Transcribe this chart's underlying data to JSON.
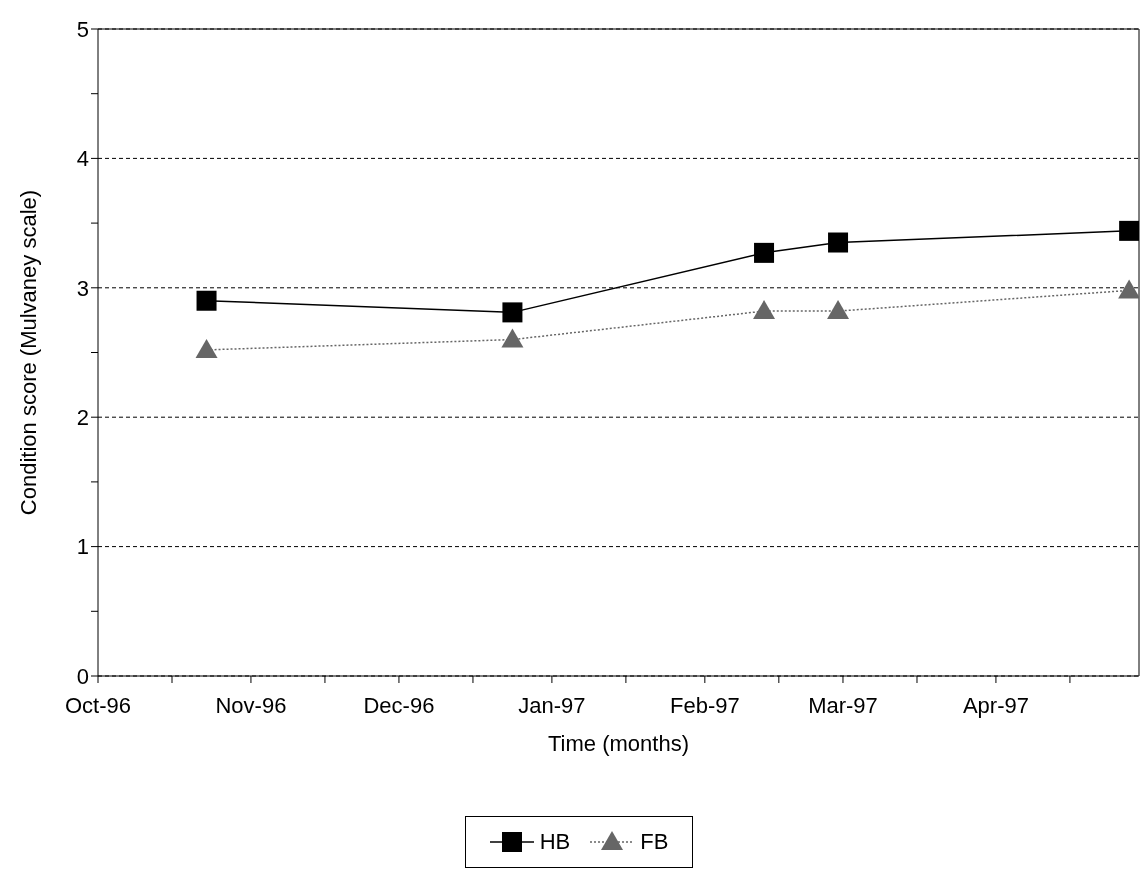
{
  "chart_data": {
    "type": "line",
    "xlabel": "Time (months)",
    "ylabel": "Condition score (Mulvaney scale)",
    "xlim": [
      "1996-10-01",
      "1997-04-30"
    ],
    "xticks": [
      {
        "value": "1996-10-01",
        "label": "Oct-96"
      },
      {
        "value": "1996-10-16",
        "label": null
      },
      {
        "value": "1996-11-01",
        "label": "Nov-96"
      },
      {
        "value": "1996-11-16",
        "label": null
      },
      {
        "value": "1996-12-01",
        "label": "Dec-96"
      },
      {
        "value": "1996-12-16",
        "label": null
      },
      {
        "value": "1997-01-01",
        "label": "Jan-97"
      },
      {
        "value": "1997-01-16",
        "label": null
      },
      {
        "value": "1997-02-01",
        "label": "Feb-97"
      },
      {
        "value": "1997-02-16",
        "label": null
      },
      {
        "value": "1997-03-01",
        "label": "Mar-97"
      },
      {
        "value": "1997-03-16",
        "label": null
      },
      {
        "value": "1997-04-01",
        "label": "Apr-97"
      },
      {
        "value": "1997-04-16",
        "label": null
      }
    ],
    "ylim": [
      0,
      5
    ],
    "yticks": [
      0,
      {
        "value": 0.5,
        "label": null
      },
      1,
      {
        "value": 1.5,
        "label": null
      },
      2,
      {
        "value": 2.5,
        "label": null
      },
      3,
      {
        "value": 3.5,
        "label": null
      },
      4,
      {
        "value": 4.5,
        "label": null
      },
      5
    ],
    "grid": "y",
    "legend": "bottom",
    "x": [
      "1996-10-23",
      "1996-12-24",
      "1997-02-13",
      "1997-02-28",
      "1997-04-28"
    ],
    "series": [
      {
        "name": "HB",
        "color": "#000000",
        "marker": "square",
        "line_style": "solid",
        "values": [
          2.9,
          2.81,
          3.27,
          3.35,
          3.44
        ]
      },
      {
        "name": "FB",
        "color": "#666666",
        "marker": "triangle",
        "line_style": "dotted",
        "values": [
          2.52,
          2.6,
          2.82,
          2.82,
          2.98
        ]
      }
    ]
  }
}
